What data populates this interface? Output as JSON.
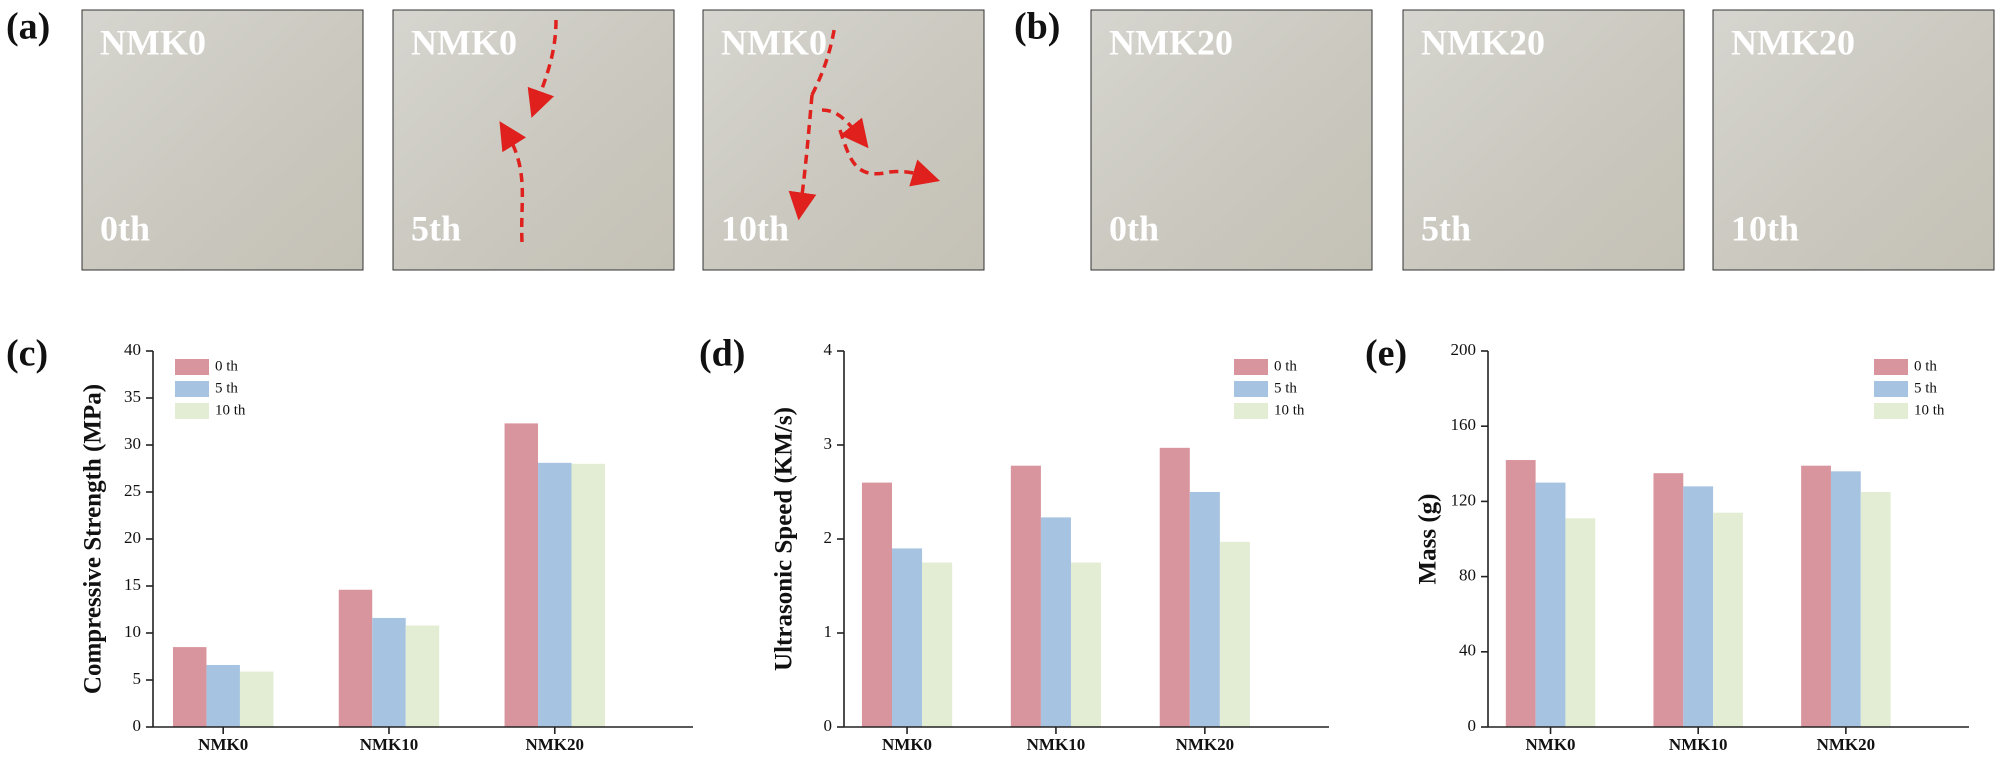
{
  "photo_panels": [
    {
      "panel_label": "(a)",
      "photos": [
        {
          "sample": "NMK0",
          "cycle": "0th"
        },
        {
          "sample": "NMK0",
          "cycle": "5th"
        },
        {
          "sample": "NMK0",
          "cycle": "10th"
        }
      ]
    },
    {
      "panel_label": "(b)",
      "photos": [
        {
          "sample": "NMK20",
          "cycle": "0th"
        },
        {
          "sample": "NMK20",
          "cycle": "5th"
        },
        {
          "sample": "NMK20",
          "cycle": "10th"
        }
      ]
    }
  ],
  "chart_data": [
    {
      "type": "bar",
      "panel_label": "(c)",
      "y_label": "Compressive Strength (MPa)",
      "categories": [
        "NMK0",
        "NMK10",
        "NMK20"
      ],
      "series": [
        {
          "name": "0 th",
          "color": "#d9959d",
          "values": [
            8.5,
            14.6,
            32.3
          ]
        },
        {
          "name": "5 th",
          "color": "#a6c4e1",
          "values": [
            6.6,
            11.6,
            28.1
          ]
        },
        {
          "name": "10 th",
          "color": "#e3edd4",
          "values": [
            5.9,
            10.8,
            28.0
          ]
        }
      ],
      "ylim": [
        0,
        40
      ],
      "yticks": [
        0,
        5,
        10,
        15,
        20,
        25,
        30,
        35,
        40
      ],
      "legend": "upper-left"
    },
    {
      "type": "bar",
      "panel_label": "(d)",
      "y_label": "Ultrasonic Speed (KM/s)",
      "categories": [
        "NMK0",
        "NMK10",
        "NMK20"
      ],
      "series": [
        {
          "name": "0 th",
          "color": "#d9959d",
          "values": [
            2.6,
            2.78,
            2.97
          ]
        },
        {
          "name": "5 th",
          "color": "#a6c4e1",
          "values": [
            1.9,
            2.23,
            2.5
          ]
        },
        {
          "name": "10 th",
          "color": "#e3edd4",
          "values": [
            1.75,
            1.75,
            1.97
          ]
        }
      ],
      "ylim": [
        0,
        4
      ],
      "yticks": [
        0,
        1,
        2,
        3,
        4
      ],
      "legend": "upper-right"
    },
    {
      "type": "bar",
      "panel_label": "(e)",
      "y_label": "Mass (g)",
      "categories": [
        "NMK0",
        "NMK10",
        "NMK20"
      ],
      "series": [
        {
          "name": "0 th",
          "color": "#d9959d",
          "values": [
            142,
            135,
            139
          ]
        },
        {
          "name": "5 th",
          "color": "#a6c4e1",
          "values": [
            130,
            128,
            136
          ]
        },
        {
          "name": "10 th",
          "color": "#e3edd4",
          "values": [
            111,
            114,
            125
          ]
        }
      ],
      "ylim": [
        0,
        200
      ],
      "yticks": [
        0,
        40,
        80,
        120,
        160,
        200
      ],
      "legend": "upper-right"
    }
  ]
}
